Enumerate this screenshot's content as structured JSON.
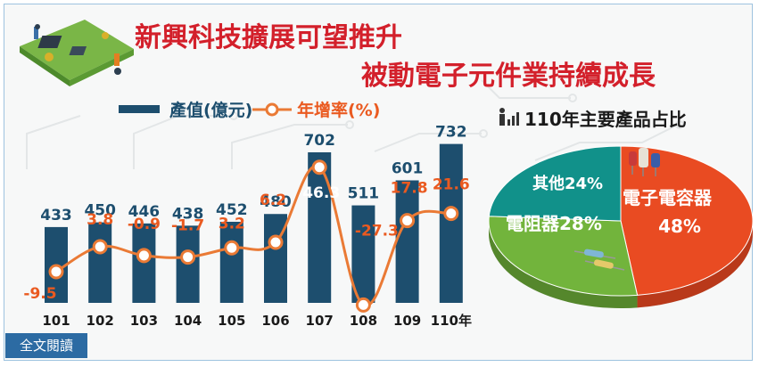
{
  "title": {
    "line1": "新興科技擴展可望推升",
    "line2": "被動電子元件業持續成長"
  },
  "legend": {
    "bar_label": "產值(億元)",
    "line_label": "年增率(%)"
  },
  "pie": {
    "title": "110年主要產品占比",
    "slices": [
      {
        "name": "電子電容器",
        "value": 48,
        "label": "48%",
        "color": "#e94b22"
      },
      {
        "name": "電阻器",
        "value": 28,
        "label": "電阻器28%",
        "color": "#72b43c"
      },
      {
        "name": "其他",
        "value": 24,
        "label": "其他24%",
        "color": "#11918a"
      }
    ]
  },
  "button": {
    "read_full": "全文閱讀"
  },
  "colors": {
    "bar": "#1d4e6e",
    "line": "#ea7a35",
    "title": "#d3202b"
  },
  "chart_data": {
    "type": "bar",
    "categories": [
      "101",
      "102",
      "103",
      "104",
      "105",
      "106",
      "107",
      "108",
      "109",
      "110年"
    ],
    "series": [
      {
        "name": "產值(億元)",
        "type": "bar",
        "values": [
          433,
          450,
          446,
          438,
          452,
          480,
          702,
          511,
          601,
          732
        ]
      },
      {
        "name": "年增率(%)",
        "type": "line",
        "values": [
          -9.5,
          3.8,
          -0.9,
          -1.7,
          3.2,
          6.2,
          46.3,
          -27.3,
          17.8,
          21.6
        ]
      }
    ],
    "value_labels": {
      "bars": [
        "433",
        "450",
        "446",
        "438",
        "452",
        "480",
        "702",
        "511",
        "601",
        "732"
      ],
      "rates": [
        "-9.5",
        "3.8",
        "-0.9",
        "-1.7",
        "3.2",
        "6.2",
        "46.3",
        "-27.3",
        "17.8",
        "21.6"
      ]
    },
    "xlabel": "",
    "ylabel": ""
  }
}
